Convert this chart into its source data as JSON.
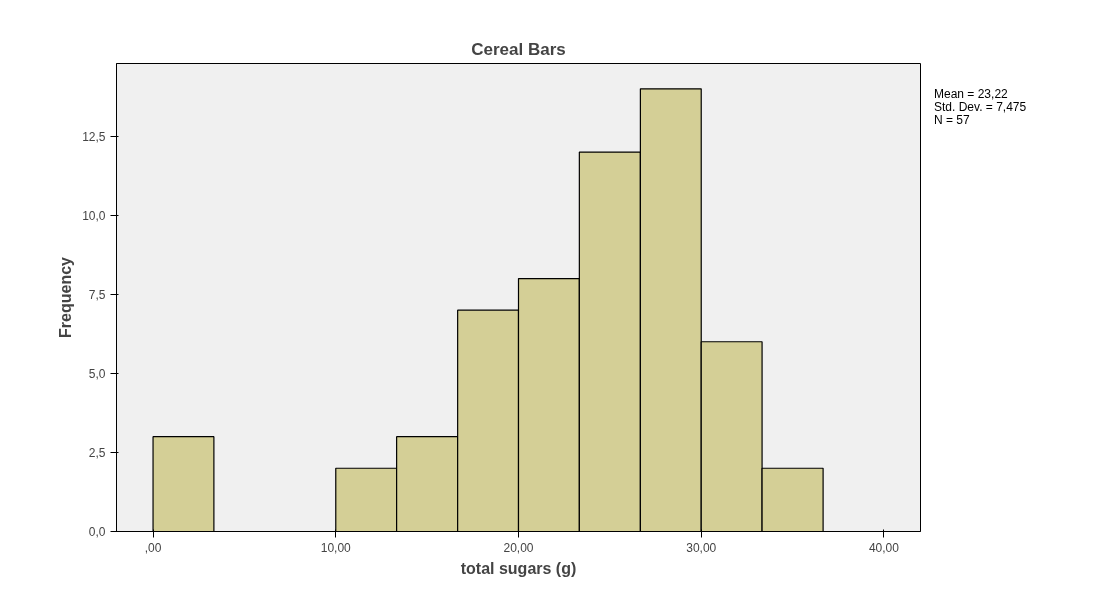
{
  "chart_data": {
    "type": "histogram",
    "title": "Cereal Bars",
    "xlabel": "total sugars (g)",
    "ylabel": "Frequency",
    "bins": [
      0,
      3.33,
      6.67,
      10,
      13.33,
      16.67,
      20,
      23.33,
      26.67,
      30,
      33.33,
      36.67
    ],
    "values": [
      3,
      0,
      0,
      2,
      3,
      7,
      8,
      12,
      14,
      6,
      2
    ],
    "color": "#d4cf96",
    "xlim": [
      -2,
      42
    ],
    "xticks": [
      {
        "value": 0,
        "label": ",00"
      },
      {
        "value": 10,
        "label": "10,00"
      },
      {
        "value": 20,
        "label": "20,00"
      },
      {
        "value": 30,
        "label": "30,00"
      },
      {
        "value": 40,
        "label": "40,00"
      }
    ],
    "ylim": [
      0,
      14.8
    ],
    "yticks": [
      {
        "value": 0,
        "label": "0,0"
      },
      {
        "value": 2.5,
        "label": "2,5"
      },
      {
        "value": 5,
        "label": "5,0"
      },
      {
        "value": 7.5,
        "label": "7,5"
      },
      {
        "value": 10,
        "label": "10,0"
      },
      {
        "value": 12.5,
        "label": "12,5"
      }
    ],
    "annotations": [
      "Mean = 23,22",
      "Std. Dev. = 7,475",
      "N = 57"
    ]
  }
}
